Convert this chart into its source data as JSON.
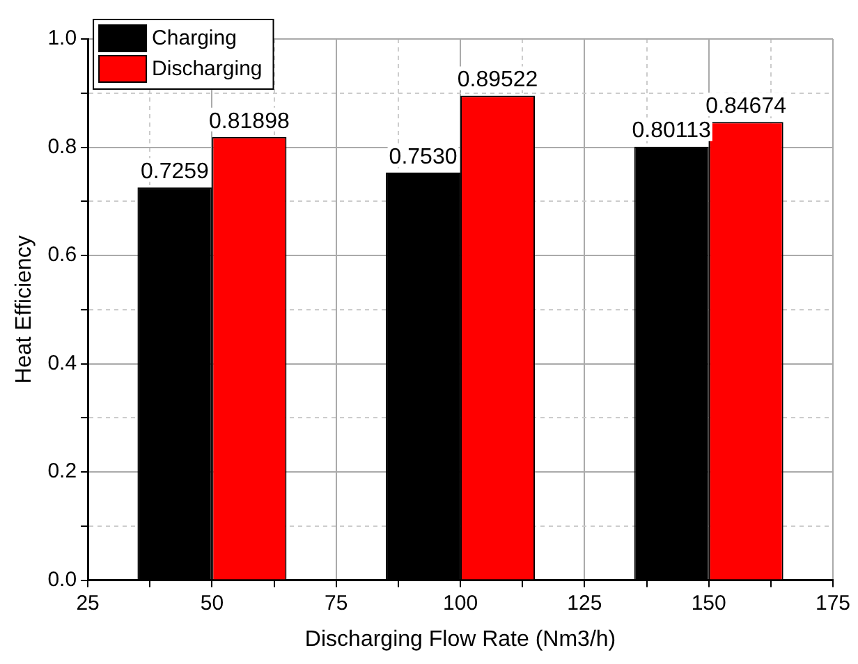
{
  "chart_data": {
    "type": "bar",
    "xlabel": "Discharging Flow Rate (Nm3/h)",
    "ylabel": "Heat Efficiency",
    "x": [
      50,
      100,
      150
    ],
    "series": [
      {
        "name": "Charging",
        "color": "#000000",
        "values": [
          0.7259,
          0.753,
          0.80113
        ],
        "value_labels": [
          "0.7259",
          "0.7530",
          "0.80113"
        ]
      },
      {
        "name": "Discharging",
        "color": "#ff0000",
        "values": [
          0.81898,
          0.89522,
          0.84674
        ],
        "value_labels": [
          "0.81898",
          "0.89522",
          "0.84674"
        ]
      }
    ],
    "xlim": [
      25,
      175
    ],
    "xticks": [
      25,
      {
        "value": 37.5,
        "label": null
      },
      50,
      {
        "value": 62.5,
        "label": null
      },
      75,
      {
        "value": 87.5,
        "label": null
      },
      100,
      {
        "value": 112.5,
        "label": null
      },
      125,
      {
        "value": 137.5,
        "label": null
      },
      150,
      {
        "value": 162.5,
        "label": null
      },
      175
    ],
    "ylim": [
      0,
      1
    ],
    "yticks": [
      {
        "value": 0,
        "label": "0.0"
      },
      {
        "value": 0.1,
        "label": null
      },
      {
        "value": 0.2,
        "label": "0.2"
      },
      {
        "value": 0.3,
        "label": null
      },
      {
        "value": 0.4,
        "label": "0.4"
      },
      {
        "value": 0.5,
        "label": null
      },
      {
        "value": 0.6,
        "label": "0.6"
      },
      {
        "value": 0.7,
        "label": null
      },
      {
        "value": 0.8,
        "label": "0.8"
      },
      {
        "value": 0.9,
        "label": null
      },
      {
        "value": 1,
        "label": "1.0"
      }
    ],
    "grid": true,
    "legend": "top left"
  }
}
